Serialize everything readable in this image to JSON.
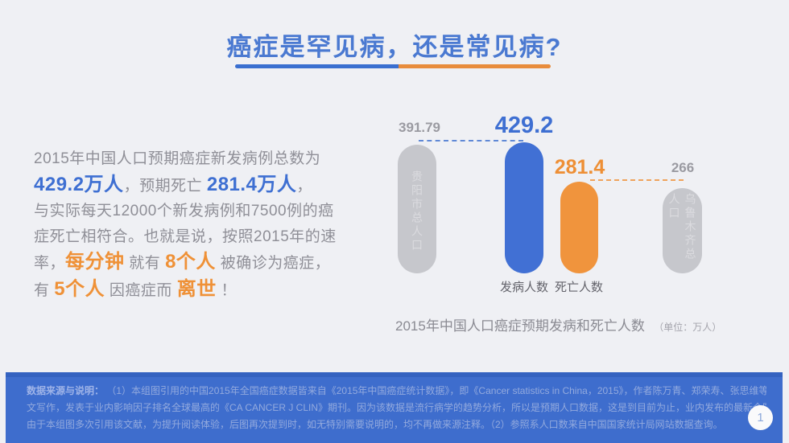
{
  "title": {
    "text": "癌症是罕见病，还是常见病?"
  },
  "accent_colors": {
    "blue": "#3e6fd2",
    "orange": "#ef9137",
    "footer_bg": "#3e6dcd",
    "bar_gray": "#c6c7cc",
    "background": "#eff0f4"
  },
  "intro": {
    "lines": [
      [
        {
          "t": "2015年中国人口预期癌症新发病例总数为",
          "s": "n"
        }
      ],
      [
        {
          "t": "429.2万人",
          "s": "b"
        },
        {
          "t": "，预期死亡 ",
          "s": "n"
        },
        {
          "t": "281.4万人",
          "s": "b"
        },
        {
          "t": "，",
          "s": "n"
        }
      ],
      [
        {
          "t": "与实际每天12000个新发病例和7500例的癌",
          "s": "n"
        }
      ],
      [
        {
          "t": "症死亡相符合。也就是说，按照2015年的速",
          "s": "n"
        }
      ],
      [
        {
          "t": "率，",
          "s": "n"
        },
        {
          "t": "每分钟",
          "s": "o"
        },
        {
          "t": " 就有 ",
          "s": "n"
        },
        {
          "t": "8个人",
          "s": "o"
        },
        {
          "t": " 被确诊为癌症，",
          "s": "n"
        }
      ],
      [
        {
          "t": "有 ",
          "s": "n"
        },
        {
          "t": "5个人",
          "s": "o"
        },
        {
          "t": " 因癌症而 ",
          "s": "n"
        },
        {
          "t": "离世",
          "s": "o"
        },
        {
          "t": " ！",
          "s": "n"
        }
      ]
    ]
  },
  "chart": {
    "bars": [
      {
        "value_label": "391.79",
        "bar_label": "贵阳市总人口"
      },
      {
        "value_label": "429.2",
        "axis_label": "发病人数"
      },
      {
        "value_label": "281.4",
        "axis_label": "死亡人数"
      },
      {
        "value_label": "266",
        "bar_label": "乌鲁木齐总人口"
      }
    ],
    "caption": "2015年中国人口癌症预期发病和死亡人数",
    "caption_unit": "（单位：万人）"
  },
  "chart_data": {
    "type": "bar",
    "categories": [
      "贵阳市总人口",
      "发病人数",
      "死亡人数",
      "乌鲁木齐总人口"
    ],
    "values": [
      391.79,
      429.2,
      281.4,
      266
    ],
    "unit": "万人",
    "title": "2015年中国人口癌症预期发病和死亡人数",
    "bar_colors": [
      "#c6c7cc",
      "#4170d4",
      "#f0943d",
      "#c6c7cc"
    ],
    "legend": "none",
    "grid": false
  },
  "footer": {
    "label": "数据来源与说明：",
    "lines": [
      "（1）本组图引用的中国2015年全国癌症数据皆来自《2015年中国癌症统计数据》，即《Cancer statistics in China，2015》，作者陈万青、郑荣寿、张思维等，原文为英",
      "文写作，发表于业内影响因子排名全球最高的《CA CANCER J CLIN》期刊。因为该数据是流行病学的趋势分析，所以是预期人口数据，这是到目前为止，业内发布的最新全国数据。",
      "由于本组图多次引用该文献，为提升阅读体验，后图再次提到时，如无特别需要说明的，均不再做来源注释。（2）参照系人口数来自中国国家统计局网站数据查询。"
    ]
  },
  "page": {
    "number": "1"
  }
}
